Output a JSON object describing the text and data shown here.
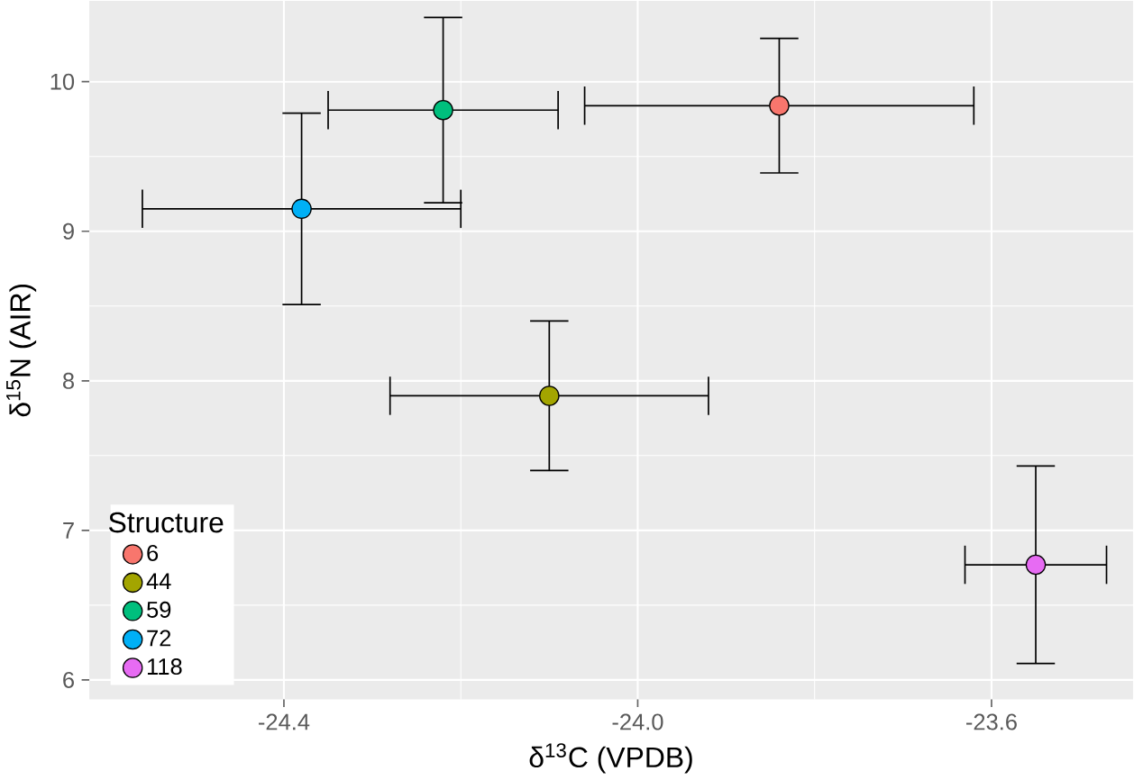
{
  "chart_data": {
    "type": "scatter",
    "xlabel": "δ$^{13}$C (VPDB)",
    "ylabel": "δ$^{15}$N (AIR)",
    "legend_title": "Structure",
    "xlim": [
      -24.62,
      -23.44
    ],
    "ylim": [
      5.87,
      10.54
    ],
    "xticks": [
      {
        "value": -24.4,
        "label": "-24.4"
      },
      {
        "value": -24.0,
        "label": "-24.0"
      },
      {
        "value": -23.6,
        "label": "-23.6"
      }
    ],
    "yticks": [
      6,
      7,
      8,
      9,
      10
    ],
    "grid": true,
    "legend": "bottom left",
    "marker": "circle",
    "series": [
      {
        "name": "6",
        "color": "#F8766D",
        "x": [
          -23.84
        ],
        "values": [
          9.84
        ],
        "errors": [
          0.45
        ],
        "xerrors": [
          0.22
        ]
      },
      {
        "name": "44",
        "color": "#A3A500",
        "x": [
          -24.1
        ],
        "values": [
          7.9
        ],
        "errors": [
          0.5
        ],
        "xerrors": [
          0.18
        ]
      },
      {
        "name": "59",
        "color": "#00BF7D",
        "x": [
          -24.22
        ],
        "values": [
          9.81
        ],
        "errors": [
          0.62
        ],
        "xerrors": [
          0.13
        ]
      },
      {
        "name": "72",
        "color": "#00B0F6",
        "x": [
          -24.38
        ],
        "values": [
          9.15
        ],
        "errors": [
          0.64
        ],
        "xerrors": [
          0.18
        ]
      },
      {
        "name": "118",
        "color": "#E76BF3",
        "x": [
          -23.55
        ],
        "values": [
          6.77
        ],
        "errors": [
          0.66
        ],
        "xerrors": [
          0.08
        ]
      }
    ]
  }
}
